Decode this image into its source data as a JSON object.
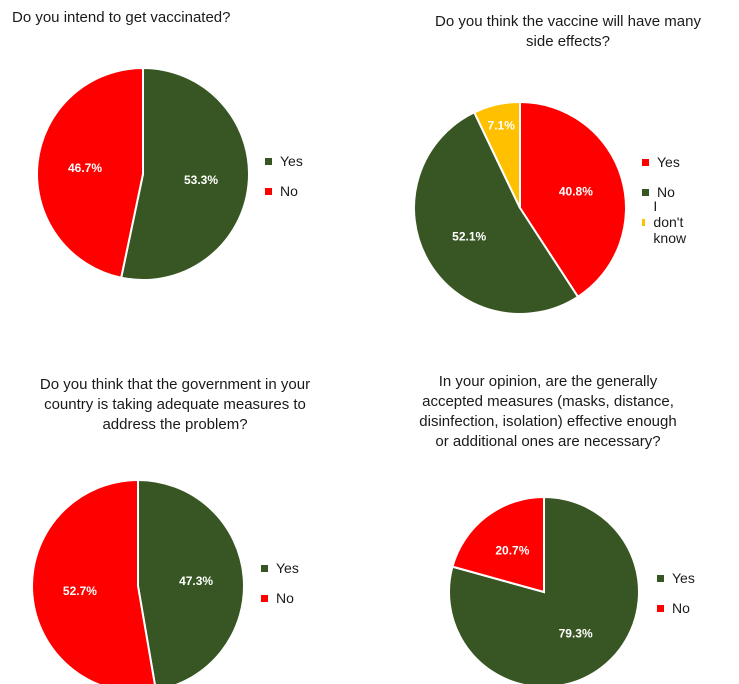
{
  "colors": {
    "yes": "#375623",
    "no": "#ff0000",
    "dont_know": "#ffc000"
  },
  "chart_data": [
    {
      "type": "pie",
      "title": [
        "Do you intend to get vaccinated?"
      ],
      "categories": [
        "Yes",
        "No"
      ],
      "values": [
        53.3,
        46.7
      ],
      "value_labels": [
        "53.3%",
        "46.7%"
      ],
      "colors": [
        "#375623",
        "#ff0000"
      ],
      "legend": "right"
    },
    {
      "type": "pie",
      "title": [
        "Do you think the vaccine will have many",
        "side effects?"
      ],
      "categories": [
        "Yes",
        "No",
        "I don't know"
      ],
      "values": [
        40.8,
        52.1,
        7.1
      ],
      "value_labels": [
        "40.8%",
        "52.1%",
        "7.1%"
      ],
      "colors": [
        "#ff0000",
        "#375623",
        "#ffc000"
      ],
      "legend": "right"
    },
    {
      "type": "pie",
      "title": [
        "Do you think that the government in your",
        "country is taking adequate measures to",
        "address the problem?"
      ],
      "categories": [
        "Yes",
        "No"
      ],
      "values": [
        47.3,
        52.7
      ],
      "value_labels": [
        "47.3%",
        "52.7%"
      ],
      "colors": [
        "#375623",
        "#ff0000"
      ],
      "legend": "right"
    },
    {
      "type": "pie",
      "title": [
        "In your opinion, are the generally",
        "accepted measures (masks, distance,",
        "disinfection, isolation) effective enough",
        "or additional ones are necessary?"
      ],
      "categories": [
        "Yes",
        "No"
      ],
      "values": [
        79.3,
        20.7
      ],
      "value_labels": [
        "79.3%",
        "20.7%"
      ],
      "colors": [
        "#375623",
        "#ff0000"
      ],
      "legend": "right"
    }
  ]
}
